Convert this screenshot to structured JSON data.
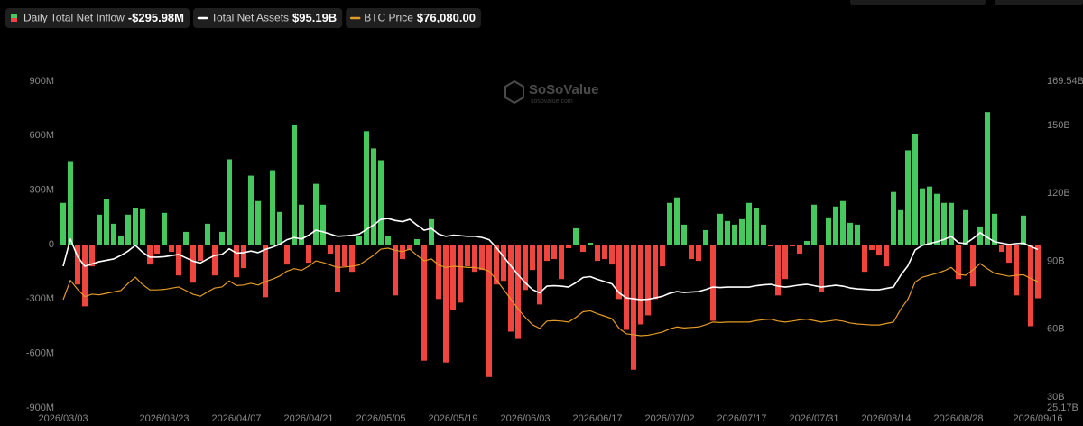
{
  "chart_data": {
    "type": "bar",
    "watermark": "SoSoValue",
    "watermark_sub": "sosovalue.com",
    "categories": [
      "2026/03/03",
      null,
      null,
      null,
      null,
      null,
      null,
      null,
      null,
      null,
      null,
      null,
      null,
      null,
      "2026/03/23",
      null,
      null,
      null,
      null,
      null,
      null,
      null,
      null,
      null,
      "2026/04/07",
      null,
      null,
      null,
      null,
      null,
      null,
      null,
      null,
      null,
      "2026/04/21",
      null,
      null,
      null,
      null,
      null,
      null,
      null,
      null,
      null,
      "2026/05/05",
      null,
      null,
      null,
      null,
      null,
      null,
      null,
      null,
      null,
      "2026/05/19",
      null,
      null,
      null,
      null,
      null,
      null,
      null,
      null,
      null,
      "2026/06/03",
      null,
      null,
      null,
      null,
      null,
      null,
      null,
      null,
      null,
      "2026/06/17",
      null,
      null,
      null,
      null,
      null,
      null,
      null,
      null,
      null,
      "2026/07/02",
      null,
      null,
      null,
      null,
      null,
      null,
      null,
      null,
      null,
      "2026/07/17",
      null,
      null,
      null,
      null,
      null,
      null,
      null,
      null,
      null,
      "2026/07/31",
      null,
      null,
      null,
      null,
      null,
      null,
      null,
      null,
      null,
      "2026/08/14",
      null,
      null,
      null,
      null,
      null,
      null,
      null,
      null,
      null,
      "2026/08/28",
      null,
      null,
      null,
      null,
      null,
      null,
      null,
      null,
      null,
      null,
      "2026/09/16"
    ],
    "series": [
      {
        "name": "Daily Total Net Inflow",
        "type": "bar",
        "legend_value": "-$295.98M",
        "color_positive": "#45c95c",
        "color_negative": "#f0453f",
        "values": [
          230,
          460,
          -220,
          -340,
          -120,
          165,
          250,
          115,
          50,
          165,
          200,
          195,
          -110,
          -50,
          175,
          -40,
          -170,
          70,
          -210,
          -90,
          115,
          -170,
          70,
          470,
          -180,
          -130,
          380,
          240,
          -290,
          410,
          180,
          -110,
          660,
          220,
          -100,
          335,
          220,
          -50,
          -260,
          -120,
          -150,
          45,
          625,
          530,
          465,
          45,
          -280,
          -80,
          -30,
          30,
          -640,
          140,
          -300,
          -650,
          -360,
          -320,
          -120,
          -150,
          -140,
          -730,
          -220,
          -200,
          -480,
          -520,
          -250,
          -140,
          -330,
          -90,
          -80,
          -190,
          -20,
          90,
          -40,
          10,
          -90,
          -80,
          -110,
          -300,
          -470,
          -690,
          -440,
          -390,
          -300,
          -120,
          230,
          260,
          110,
          -80,
          -90,
          80,
          -420,
          170,
          130,
          110,
          140,
          230,
          200,
          110,
          -10,
          -280,
          -190,
          -10,
          -50,
          20,
          220,
          -260,
          150,
          210,
          240,
          120,
          110,
          -150,
          -30,
          -60,
          -120,
          290,
          190,
          520,
          610,
          310,
          320,
          280,
          230,
          230,
          -190,
          190,
          -230,
          100,
          730,
          170,
          -40,
          -100,
          -280,
          160,
          -450,
          -295.98
        ]
      },
      {
        "name": "Total Net Assets",
        "type": "line",
        "axis": "y2",
        "legend_value": "$95.19B",
        "color": "#ffffff",
        "values": [
          87.8,
          99.8,
          92,
          87.8,
          88.8,
          89.8,
          90.4,
          91.0,
          92.6,
          94.5,
          97.0,
          94,
          91.8,
          91.8,
          92.0,
          92.5,
          93.0,
          91.5,
          90,
          89.2,
          91,
          92.6,
          93.0,
          95.5,
          93.6,
          93.8,
          94.5,
          93.8,
          95.2,
          96.2,
          97.5,
          99.5,
          100.5,
          99.8,
          101.5,
          103.7,
          103,
          102,
          101,
          101.2,
          101.5,
          102,
          104,
          106,
          108.5,
          108.9,
          108,
          107.5,
          108.5,
          106,
          103.7,
          104.5,
          102,
          101,
          101.5,
          101.3,
          101,
          101,
          100.5,
          99.5,
          96,
          92,
          88,
          84,
          80.5,
          77.5,
          76,
          79,
          79.2,
          79,
          78.6,
          80.5,
          82.8,
          83.2,
          82,
          81,
          80,
          76,
          73.8,
          73.4,
          73.0,
          73.2,
          73.8,
          74.5,
          75.8,
          76.6,
          76.2,
          76.4,
          76.6,
          77.5,
          78.6,
          78.4,
          78.6,
          78.6,
          78.6,
          78.6,
          79.2,
          79.6,
          79.8,
          79,
          78.6,
          79,
          79.5,
          79.8,
          79.2,
          78.6,
          79,
          79.4,
          79,
          78.2,
          77.8,
          77.6,
          77.4,
          77.4,
          78,
          78.6,
          83.8,
          88,
          95,
          97,
          97.8,
          98.6,
          99.6,
          101,
          98.2,
          97.8,
          100,
          102.6,
          100.5,
          98.6,
          98,
          97.4,
          97.8,
          98,
          96.5,
          95.19
        ]
      },
      {
        "name": "BTC Price",
        "type": "line",
        "axis": "own",
        "legend_value": "$76,080.00",
        "color": "#e39a27",
        "values": [
          70170,
          76500,
          73530,
          71200,
          71970,
          71770,
          72250,
          72730,
          73200,
          75530,
          77530,
          75130,
          73370,
          73370,
          73530,
          73930,
          74330,
          73130,
          71930,
          71290,
          72730,
          74010,
          74330,
          76330,
          74810,
          74970,
          75530,
          74970,
          76090,
          76890,
          77930,
          79530,
          80330,
          79770,
          81130,
          82890,
          82330,
          81530,
          80730,
          80890,
          81130,
          81530,
          83130,
          84730,
          86730,
          87050,
          86330,
          85930,
          86730,
          84730,
          82890,
          83530,
          81530,
          80730,
          81130,
          80970,
          80730,
          80730,
          80330,
          79530,
          76730,
          73530,
          70330,
          67130,
          64330,
          61930,
          60730,
          63130,
          63290,
          63130,
          62810,
          64330,
          66170,
          66490,
          65530,
          64730,
          63930,
          60730,
          58970,
          58650,
          58330,
          58490,
          58970,
          59530,
          60570,
          61210,
          60890,
          61050,
          61210,
          61930,
          62810,
          62650,
          62810,
          62810,
          62810,
          62810,
          63290,
          63610,
          63770,
          63130,
          62810,
          63130,
          63530,
          63770,
          63290,
          62810,
          63130,
          63450,
          63130,
          62490,
          62170,
          62010,
          61850,
          61850,
          62330,
          62810,
          66970,
          70330,
          75930,
          77530,
          78170,
          78810,
          79610,
          80730,
          78490,
          78170,
          79930,
          82010,
          80330,
          78810,
          78330,
          77850,
          78170,
          78330,
          77130,
          76080
        ]
      }
    ],
    "ylim": [
      -900,
      900
    ],
    "yticks": [
      {
        "value": 900,
        "label": "900M"
      },
      {
        "value": 600,
        "label": "600M"
      },
      {
        "value": 300,
        "label": "300M"
      },
      0,
      {
        "value": -300,
        "label": "-300M"
      },
      {
        "value": -600,
        "label": "-600M"
      },
      {
        "value": -900,
        "label": "-900M"
      }
    ],
    "y2lim": [
      25.17,
      169.54
    ],
    "y2ticks": [
      {
        "value": 169.54,
        "label": "169.54B"
      },
      {
        "value": 150,
        "label": "150B"
      },
      {
        "value": 120,
        "label": "120B"
      },
      {
        "value": 90,
        "label": "90B"
      },
      {
        "value": 60,
        "label": "60B"
      },
      {
        "value": 30,
        "label": "30B"
      },
      {
        "value": 25.17,
        "label": "25.17B"
      }
    ],
    "grid": false
  }
}
